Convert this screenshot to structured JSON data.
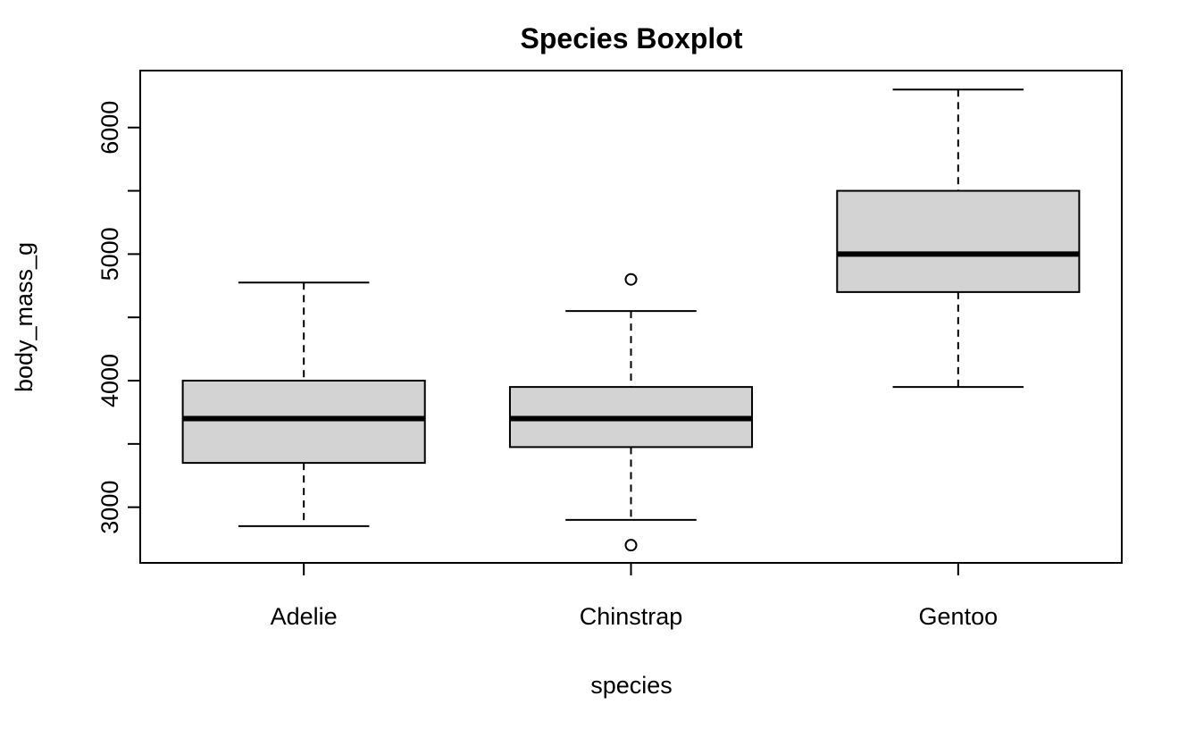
{
  "chart_data": {
    "type": "boxplot",
    "title": "Species Boxplot",
    "xlabel": "species",
    "ylabel": "body_mass_g",
    "categories": [
      "Adelie",
      "Chinstrap",
      "Gentoo"
    ],
    "ylim": [
      2560,
      6450
    ],
    "y_ticks": [
      3000,
      4000,
      5000,
      6000
    ],
    "y_minor_ticks": [
      3500,
      4500,
      5500
    ],
    "box_fill": "#d3d3d3",
    "grid": false,
    "boxes": [
      {
        "category": "Adelie",
        "min": 2850,
        "q1": 3350,
        "median": 3700,
        "q3": 4000,
        "max": 4775,
        "outliers": []
      },
      {
        "category": "Chinstrap",
        "min": 2900,
        "q1": 3475,
        "median": 3700,
        "q3": 3950,
        "max": 4550,
        "outliers": [
          4800,
          2700
        ]
      },
      {
        "category": "Gentoo",
        "min": 3950,
        "q1": 4700,
        "median": 5000,
        "q3": 5500,
        "max": 6300,
        "outliers": []
      }
    ]
  }
}
